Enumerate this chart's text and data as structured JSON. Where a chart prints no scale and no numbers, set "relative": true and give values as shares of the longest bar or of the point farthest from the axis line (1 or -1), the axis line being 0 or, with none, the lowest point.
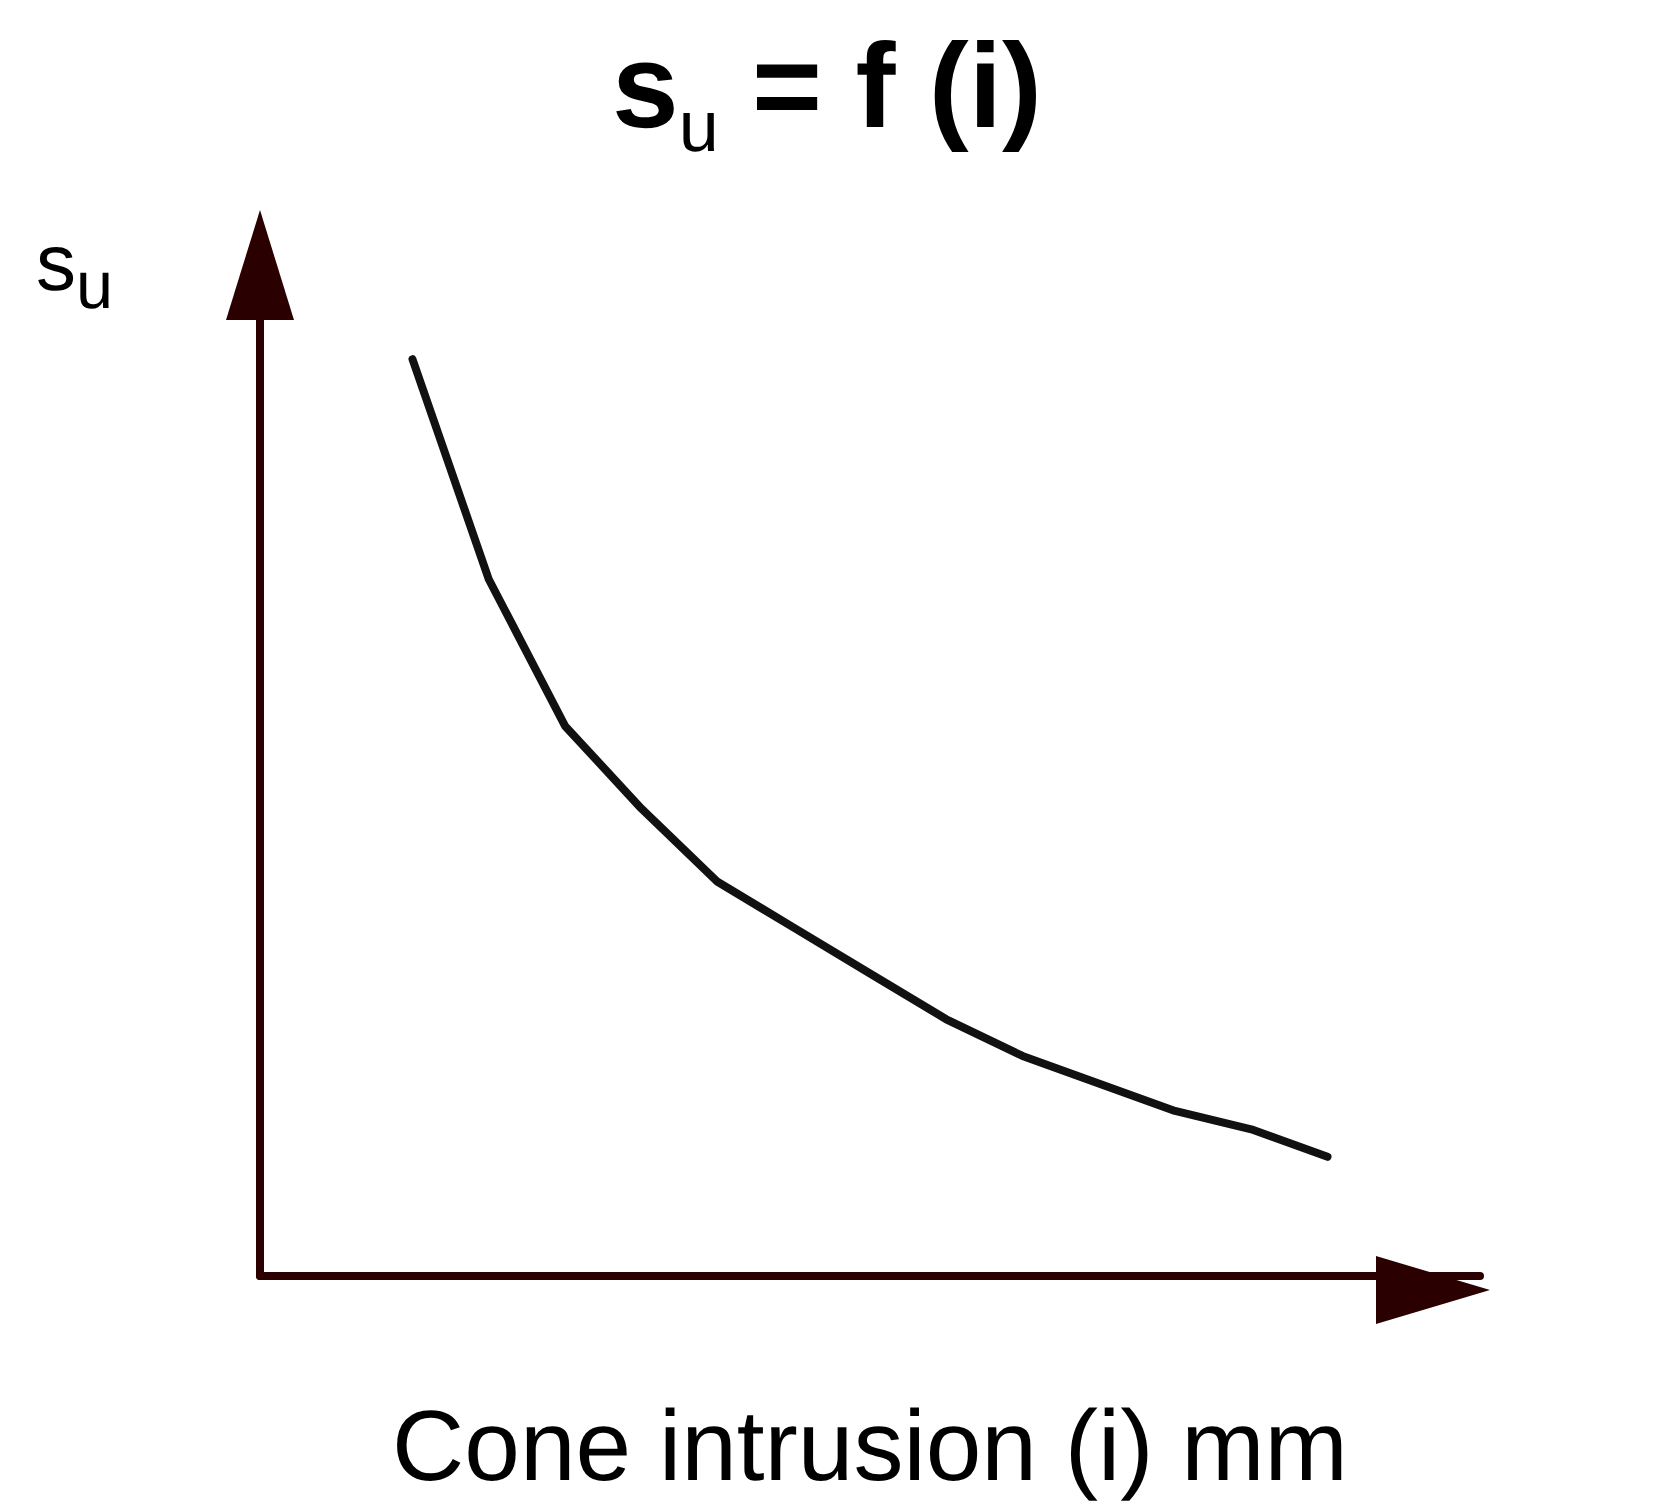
{
  "chart_data": {
    "type": "line",
    "title": "s$_{u}$ = f (i)",
    "ylabel": "s$_{u}$",
    "xlabel": "Cone intrusion (i) mm",
    "relative": true,
    "color": "#111111",
    "marker": "none",
    "categories": [
      null,
      null,
      null,
      null,
      null,
      null,
      null,
      null,
      null,
      null,
      null,
      null,
      null,
      null,
      null,
      null,
      null
    ],
    "values": [
      null,
      null,
      1,
      0.76,
      0.6,
      0.51,
      0.43,
      0.38,
      0.33,
      0.28,
      0.24,
      0.21,
      0.18,
      0.16,
      0.13,
      null,
      null
    ]
  }
}
